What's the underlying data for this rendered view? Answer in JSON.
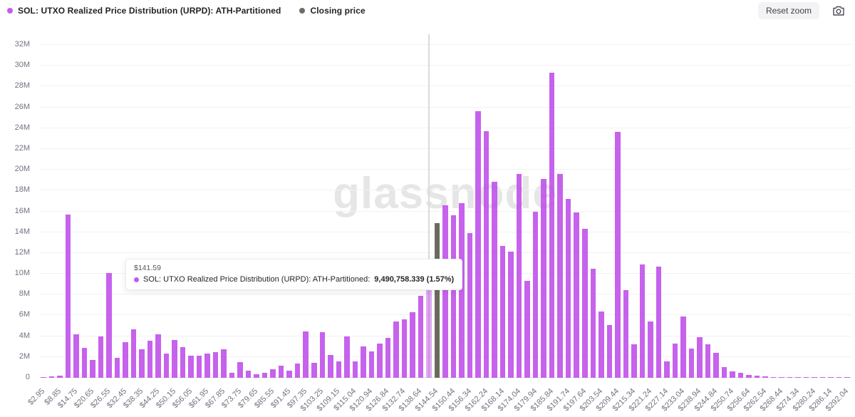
{
  "header": {
    "legend": [
      {
        "label": "SOL: UTXO Realized Price Distribution (URPD): ATH-Partitioned",
        "color": "#c45ce9"
      },
      {
        "label": "Closing price",
        "color": "#6e6d63"
      }
    ],
    "reset_zoom_label": "Reset zoom"
  },
  "watermark": "glassnode",
  "tooltip": {
    "price": "$141.59",
    "series_label": "SOL: UTXO Realized Price Distribution (URPD): ATH-Partitioned:",
    "value": "9,490,758.339 (1.57%)",
    "dot_color": "#c45ce9"
  },
  "chart_data": {
    "type": "bar",
    "title": "SOL: UTXO Realized Price Distribution (URPD): ATH-Partitioned",
    "legend": [
      "SOL: UTXO Realized Price Distribution (URPD): ATH-Partitioned",
      "Closing price"
    ],
    "legend_position": "top-left",
    "grid": true,
    "ylim": [
      0,
      32000000
    ],
    "y_axis": {
      "ticks": [
        "0",
        "2M",
        "4M",
        "6M",
        "8M",
        "10M",
        "12M",
        "14M",
        "16M",
        "18M",
        "20M",
        "22M",
        "24M",
        "26M",
        "28M",
        "30M",
        "32M"
      ]
    },
    "x_axis": {
      "first_bar_price": 2.95,
      "price_step": 2.95,
      "tick_labels": [
        "$2.95",
        "$8.85",
        "$14.75",
        "$20.65",
        "$26.55",
        "$32.45",
        "$38.35",
        "$44.25",
        "$50.15",
        "$56.05",
        "$61.95",
        "$67.85",
        "$73.75",
        "$79.65",
        "$85.55",
        "$91.45",
        "$97.35",
        "$103.25",
        "$109.15",
        "$115.04",
        "$120.94",
        "$126.84",
        "$132.74",
        "$138.64",
        "$144.54",
        "$150.44",
        "$156.34",
        "$162.24",
        "$168.14",
        "$174.04",
        "$179.94",
        "$185.84",
        "$191.74",
        "$197.64",
        "$203.54",
        "$209.44",
        "$215.34",
        "$221.24",
        "$227.14",
        "$233.04",
        "$238.94",
        "$244.84",
        "$250.74",
        "$256.64",
        "$262.54",
        "$268.44",
        "$274.34",
        "$280.24",
        "$286.14",
        "$292.04"
      ]
    },
    "values_unit": "millions",
    "values_millions": [
      0.03,
      0.15,
      0.2,
      15.7,
      4.2,
      2.9,
      1.7,
      3.95,
      10.05,
      1.9,
      3.4,
      4.65,
      2.75,
      3.55,
      4.2,
      2.3,
      3.6,
      2.95,
      2.1,
      2.1,
      2.35,
      2.5,
      2.75,
      0.5,
      1.5,
      0.7,
      0.35,
      0.5,
      0.85,
      1.15,
      0.7,
      1.35,
      4.45,
      1.45,
      4.4,
      2.2,
      1.55,
      4.0,
      1.6,
      3.0,
      2.55,
      3.3,
      3.85,
      5.4,
      5.65,
      6.3,
      7.9,
      9.49,
      14.9,
      16.6,
      15.6,
      16.8,
      13.9,
      25.65,
      23.7,
      18.85,
      12.7,
      12.15,
      19.6,
      9.3,
      16.0,
      19.1,
      29.3,
      19.6,
      17.2,
      15.9,
      14.3,
      10.5,
      6.4,
      5.05,
      23.65,
      8.4,
      3.2,
      10.9,
      5.4,
      10.7,
      1.6,
      3.3,
      5.9,
      2.8,
      3.9,
      3.2,
      2.4,
      1.05,
      0.6,
      0.45,
      0.25,
      0.2,
      0.12,
      0.1,
      0.1,
      0.08,
      0.06,
      0.05,
      0.04,
      0.03,
      0.03,
      0.02,
      0.02
    ],
    "bar_color": "#be4ce9",
    "highlighted_bar": {
      "index": 47,
      "price_label": "$141.59",
      "exact_value": 9490758.339,
      "percent": "1.57%"
    },
    "closing_price_bar": {
      "index": 48,
      "color": "#5e5d53"
    }
  }
}
